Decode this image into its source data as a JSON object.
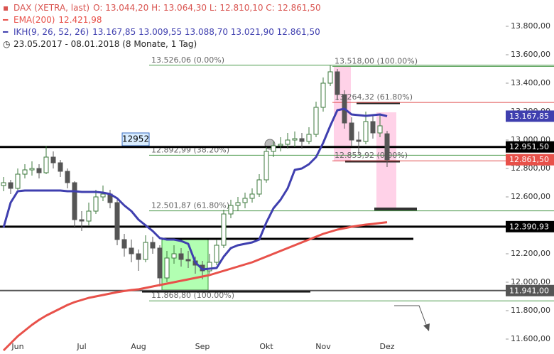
{
  "chart_data": {
    "type": "candlestick",
    "categories": [
      null,
      null,
      "Jun",
      null,
      null,
      null,
      null,
      null,
      null,
      null,
      null,
      "Jul",
      null,
      null,
      null,
      null,
      null,
      null,
      null,
      "Aug",
      null,
      null,
      null,
      null,
      null,
      null,
      null,
      null,
      "Sep",
      null,
      null,
      null,
      null,
      null,
      null,
      null,
      null,
      "Okt",
      null,
      null,
      null,
      null,
      null,
      null,
      null,
      "Nov",
      null,
      null,
      null,
      null,
      null,
      null,
      null,
      null,
      "Dez"
    ],
    "series": [
      {
        "name": "DAX (XETRA, last)",
        "type": "candlestick",
        "color": "#d9534f",
        "up_color": "#3d7a3d",
        "down_color": "#555555",
        "legend_values": "O: 13.044,20 H: 13.064,30 L: 12.810,10 C: 12.861,50",
        "values": [
          [
            12680,
            12740,
            12640,
            12700
          ],
          [
            12700,
            12720,
            12620,
            12660
          ],
          [
            12660,
            12800,
            12650,
            12760
          ],
          [
            12760,
            12830,
            12730,
            12790
          ],
          [
            12790,
            12850,
            12750,
            12800
          ],
          [
            12800,
            12830,
            12730,
            12770
          ],
          [
            12770,
            12960,
            12760,
            12880
          ],
          [
            12880,
            12920,
            12800,
            12840
          ],
          [
            12840,
            12860,
            12740,
            12780
          ],
          [
            12780,
            12800,
            12660,
            12700
          ],
          [
            12700,
            12710,
            12380,
            12440
          ],
          [
            12440,
            12500,
            12360,
            12430
          ],
          [
            12430,
            12560,
            12400,
            12500
          ],
          [
            12500,
            12650,
            12480,
            12600
          ],
          [
            12600,
            12680,
            12570,
            12620
          ],
          [
            12620,
            12650,
            12520,
            12560
          ],
          [
            12560,
            12580,
            12260,
            12300
          ],
          [
            12300,
            12340,
            12180,
            12240
          ],
          [
            12240,
            12300,
            12140,
            12200
          ],
          [
            12200,
            12230,
            12080,
            12160
          ],
          [
            12160,
            12330,
            12140,
            12280
          ],
          [
            12280,
            12320,
            12200,
            12240
          ],
          [
            12240,
            12260,
            11970,
            12030
          ],
          [
            12030,
            12220,
            12000,
            12170
          ],
          [
            12170,
            12260,
            12130,
            12200
          ],
          [
            12200,
            12240,
            12110,
            12160
          ],
          [
            12160,
            12220,
            12100,
            12150
          ],
          [
            12150,
            12180,
            12060,
            12120
          ],
          [
            12120,
            12150,
            12020,
            12080
          ],
          [
            12080,
            12200,
            12060,
            12140
          ],
          [
            12140,
            12300,
            12120,
            12260
          ],
          [
            12260,
            12510,
            12240,
            12480
          ],
          [
            12480,
            12580,
            12450,
            12540
          ],
          [
            12540,
            12600,
            12500,
            12560
          ],
          [
            12560,
            12630,
            12520,
            12590
          ],
          [
            12590,
            12660,
            12560,
            12620
          ],
          [
            12620,
            12760,
            12600,
            12720
          ],
          [
            12720,
            12950,
            12700,
            12920
          ],
          [
            12920,
            12990,
            12880,
            12960
          ],
          [
            12960,
            13020,
            12920,
            12970
          ],
          [
            12970,
            13050,
            12940,
            13000
          ],
          [
            13000,
            13060,
            12950,
            13010
          ],
          [
            13010,
            13050,
            12940,
            12990
          ],
          [
            12990,
            13090,
            12970,
            13040
          ],
          [
            13040,
            13270,
            13020,
            13230
          ],
          [
            13230,
            13440,
            13200,
            13400
          ],
          [
            13400,
            13525,
            13380,
            13480
          ],
          [
            13480,
            13500,
            13280,
            13320
          ],
          [
            13320,
            13350,
            13080,
            13120
          ],
          [
            13120,
            13160,
            12960,
            13000
          ],
          [
            13000,
            13060,
            12900,
            12990
          ],
          [
            12990,
            13200,
            12970,
            13130
          ],
          [
            13130,
            13170,
            13010,
            13050
          ],
          [
            13050,
            13180,
            13020,
            13100
          ],
          [
            13044.2,
            13064.3,
            12810.1,
            12861.5
          ]
        ]
      },
      {
        "name": "EMA(200)",
        "type": "line",
        "color": "#e8514a",
        "legend_values": "12.421,98",
        "values": [
          11520,
          11570,
          11620,
          11660,
          11700,
          11735,
          11765,
          11790,
          11815,
          11840,
          11860,
          11875,
          11890,
          11900,
          11910,
          11920,
          11930,
          11938,
          11945,
          11950,
          11960,
          11970,
          11980,
          11990,
          12000,
          12010,
          12020,
          12030,
          12040,
          12050,
          12065,
          12080,
          12095,
          12110,
          12125,
          12140,
          12160,
          12180,
          12200,
          12220,
          12240,
          12260,
          12280,
          12300,
          12320,
          12340,
          12355,
          12370,
          12380,
          12390,
          12398,
          12405,
          12410,
          12416,
          12421.98
        ]
      },
      {
        "name": "IKH(9, 26, 52, 26)",
        "type": "line",
        "color": "#3f3faf",
        "legend_values": "13.167,85 13.009,55 13.088,70 13.021,90 12.861,50",
        "values": [
          12385,
          12560,
          12640,
          12645,
          12645,
          12645,
          12645,
          12645,
          12645,
          12640,
          12640,
          12635,
          12635,
          12635,
          12630,
          12620,
          12590,
          12540,
          12500,
          12440,
          12400,
          12360,
          12310,
          12300,
          12300,
          12290,
          12270,
          12140,
          12090,
          12095,
          12100,
          12180,
          12240,
          12260,
          12270,
          12280,
          12300,
          12420,
          12520,
          12580,
          12660,
          12790,
          12800,
          12830,
          12880,
          12980,
          13100,
          13210,
          13220,
          13180,
          13175,
          13170,
          13175,
          13180,
          13167.85
        ]
      }
    ],
    "period": "23.05.2017 - 08.01.2018 (8 Monate, 1 Tag)",
    "ylim": [
      11495,
      13985
    ],
    "yticks": [
      {
        "value": 11600,
        "label": "11.600,00"
      },
      {
        "value": 11800,
        "label": "11.800,00"
      },
      {
        "value": 12000,
        "label": "12.000,00"
      },
      {
        "value": 12200,
        "label": "12.200,00"
      },
      {
        "value": 12400,
        "label": "12.400,00"
      },
      {
        "value": 12600,
        "label": "12.600,00"
      },
      {
        "value": 12800,
        "label": "12.800,00"
      },
      {
        "value": 13000,
        "label": "13.000,00"
      },
      {
        "value": 13200,
        "label": "13.200,00"
      },
      {
        "value": 13400,
        "label": "13.400,00"
      },
      {
        "value": 13600,
        "label": "13.600,00"
      },
      {
        "value": 13800,
        "label": "13.800,00"
      }
    ],
    "grid": false,
    "levels": [
      {
        "value": 12951.5,
        "label": "12.951,50",
        "color": "#000000",
        "line": true
      },
      {
        "value": 12390.93,
        "label": "12.390,93",
        "color": "#000000",
        "line": true
      },
      {
        "value": 11941,
        "label": "11.941,00",
        "color": "#555555",
        "line": true
      },
      {
        "value": 13167.85,
        "label": "13.167,85",
        "color": "#3f3faf",
        "line": false
      },
      {
        "value": 12861.5,
        "label": "12.861,50",
        "color": "#e8514a",
        "line": false
      }
    ],
    "fibs": [
      [
        {
          "value": 13526.06,
          "label": "13.526,06 (0.00%)",
          "color": "#4c9a4c"
        },
        {
          "value": 12892.99,
          "label": "12.892,99 (38.20%)",
          "color": "#4c9a4c"
        },
        {
          "value": 12501.87,
          "label": "12.501,87 (61.80%)",
          "color": "#4c9a4c"
        },
        {
          "value": 11868.8,
          "label": "11.868,80 (100.00%)",
          "color": "#4c9a4c"
        }
      ],
      [
        {
          "value": 13518,
          "label": "13.518,00 (100.00%)",
          "color": "#4c9a4c"
        },
        {
          "value": 13264.32,
          "label": "13.264,32 (61.80%)",
          "color": "#e05050"
        },
        {
          "value": 12853.92,
          "label": "12.853,92 (0.00%)",
          "color": "#e05050"
        }
      ]
    ],
    "box_label": "12952"
  }
}
